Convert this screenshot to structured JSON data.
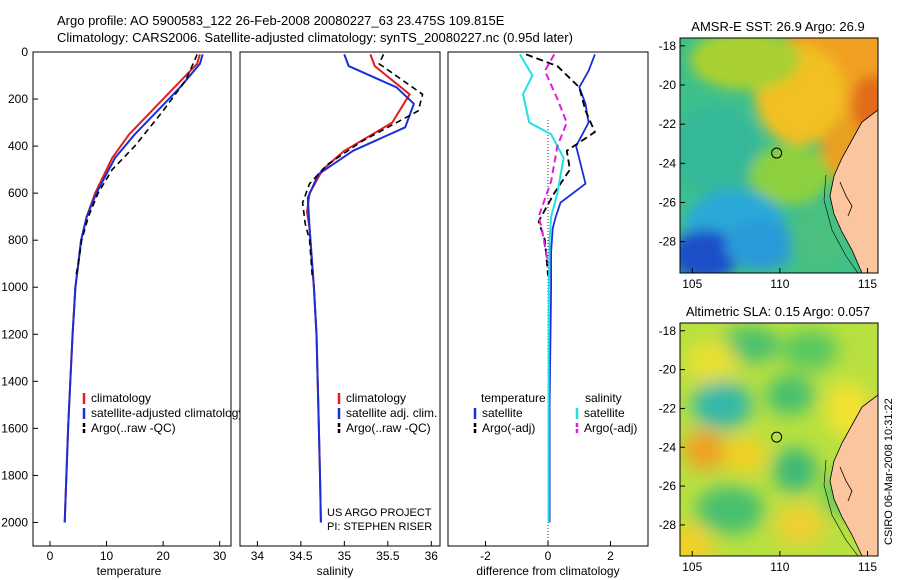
{
  "header": {
    "line1": "Argo profile: AO 5900583_122 26-Feb-2008 20080227_63 23.475S 109.815E",
    "line2": "Climatology: CARS2006. Satellite-adjusted climatology: synTS_20080227.nc (0.95d later)"
  },
  "colors": {
    "climatology": "#e01e1e",
    "satellite": "#1a2fd6",
    "argo": "#000000",
    "satellite_salinity": "#22e0e6",
    "argo_salinity_adj": "#e01ee0",
    "land": "#fbc5a0"
  },
  "chart_data": [
    {
      "type": "line",
      "xlabel": "temperature",
      "y_ticks": [
        0,
        200,
        400,
        600,
        800,
        1000,
        1200,
        1400,
        1600,
        1800,
        2000
      ],
      "xlim": [
        -3,
        32
      ],
      "x_ticks": [
        0,
        10,
        20,
        30
      ],
      "ylim": [
        2100,
        0
      ],
      "legend_position": "lower-center",
      "series": [
        {
          "name": "climatology",
          "x": [
            26.5,
            26.0,
            22.0,
            18.0,
            14.0,
            11.0,
            8.0,
            6.5,
            5.5,
            5.0,
            4.5,
            4.0,
            3.6,
            3.2,
            2.9,
            2.6
          ],
          "y": [
            10,
            50,
            150,
            250,
            350,
            450,
            600,
            700,
            800,
            900,
            1000,
            1200,
            1400,
            1600,
            1800,
            2000
          ]
        },
        {
          "name": "satellite-adjusted climatology",
          "x": [
            27.0,
            26.5,
            23.0,
            19.0,
            15.0,
            11.5,
            8.2,
            6.5,
            5.5,
            5.0,
            4.5,
            4.0,
            3.6,
            3.2,
            2.9,
            2.6
          ],
          "y": [
            10,
            50,
            150,
            250,
            350,
            450,
            600,
            700,
            800,
            900,
            1000,
            1200,
            1400,
            1600,
            1800,
            2000
          ]
        },
        {
          "name": "Argo(..raw -QC)",
          "x": [
            26.0,
            25.5,
            24.0,
            20.0,
            15.0,
            11.0,
            8.5,
            6.8,
            5.6,
            5.0,
            4.6
          ],
          "y": [
            10,
            40,
            120,
            250,
            400,
            500,
            600,
            700,
            800,
            900,
            950
          ]
        }
      ]
    },
    {
      "type": "line",
      "xlabel": "salinity",
      "xlim": [
        33.8,
        36.1
      ],
      "x_ticks": [
        34,
        34.5,
        35,
        35.5,
        36
      ],
      "ylim": [
        2100,
        0
      ],
      "annotations": [
        "US ARGO PROJECT",
        "PI: STEPHEN RISER"
      ],
      "legend_position": "lower-center",
      "series": [
        {
          "name": "climatology",
          "x": [
            35.3,
            35.35,
            35.75,
            35.55,
            35.0,
            34.75,
            34.6,
            34.57,
            34.6,
            34.62,
            34.65,
            34.68,
            34.7,
            34.72,
            34.73
          ],
          "y": [
            10,
            60,
            180,
            300,
            420,
            500,
            600,
            680,
            750,
            850,
            1000,
            1200,
            1500,
            1800,
            2000
          ]
        },
        {
          "name": "satellite adj. clim.",
          "x": [
            35.0,
            35.05,
            35.6,
            35.8,
            35.7,
            35.1,
            34.7,
            34.58,
            34.6,
            34.62,
            34.65,
            34.68,
            34.7,
            34.72,
            34.73
          ],
          "y": [
            10,
            60,
            150,
            220,
            320,
            420,
            520,
            620,
            750,
            850,
            1000,
            1200,
            1500,
            1800,
            2000
          ]
        },
        {
          "name": "Argo(..raw -QC)",
          "x": [
            35.45,
            35.4,
            35.9,
            35.85,
            35.2,
            34.8,
            34.6,
            34.52,
            34.55,
            34.6,
            34.63
          ],
          "y": [
            10,
            50,
            180,
            250,
            380,
            480,
            560,
            640,
            730,
            800,
            950
          ]
        }
      ]
    },
    {
      "type": "line",
      "xlabel": "difference from climatology",
      "xlim": [
        -3.2,
        3.2
      ],
      "x_ticks": [
        -2,
        0,
        2
      ],
      "ylim": [
        2100,
        0
      ],
      "legend_position": "lower-center",
      "legend_groups": [
        {
          "title": "temperature",
          "items": [
            "satellite",
            "Argo(-adj)"
          ]
        },
        {
          "title": "salinity",
          "items": [
            "satellite",
            "Argo(-adj)"
          ]
        }
      ],
      "series": [
        {
          "name": "satellite",
          "group": "temperature",
          "x": [
            1.5,
            1.3,
            1.0,
            1.2,
            1.3,
            0.9,
            1.2,
            0.4,
            0.25,
            0.15,
            0.1,
            0.1,
            0.05,
            0.05
          ],
          "y": [
            10,
            80,
            150,
            220,
            300,
            400,
            560,
            640,
            700,
            750,
            850,
            1000,
            1500,
            2000
          ]
        },
        {
          "name": "Argo(-adj)",
          "group": "temperature",
          "x": [
            -0.7,
            0.3,
            1.0,
            1.2,
            1.5,
            0.6,
            0.7,
            0.2,
            -0.3,
            -0.1,
            0.0
          ],
          "y": [
            10,
            60,
            150,
            250,
            340,
            420,
            500,
            600,
            720,
            800,
            950
          ]
        },
        {
          "name": "satellite",
          "group": "salinity",
          "x": [
            -0.9,
            -0.5,
            -0.8,
            -0.6,
            0.1,
            0.5,
            0.3,
            0.1,
            0.05,
            0.03,
            0.02,
            0.02
          ],
          "y": [
            10,
            100,
            180,
            300,
            350,
            450,
            600,
            700,
            800,
            1000,
            1500,
            2000
          ]
        },
        {
          "name": "Argo(-adj)",
          "group": "salinity",
          "x": [
            0.2,
            -0.1,
            0.3,
            0.6,
            0.3,
            0.1,
            -0.3,
            -0.2,
            0.0
          ],
          "y": [
            10,
            80,
            200,
            300,
            400,
            550,
            700,
            750,
            900
          ]
        }
      ]
    },
    {
      "type": "heatmap",
      "title": "AMSR-E SST: 26.9 Argo: 26.9",
      "xlim": [
        104.3,
        115.6
      ],
      "ylim": [
        -29.6,
        -17.6
      ],
      "x_ticks": [
        105,
        110,
        115
      ],
      "y_ticks": [
        -18,
        -20,
        -22,
        -24,
        -26,
        -28
      ],
      "marker": [
        109.815,
        -23.475
      ]
    },
    {
      "type": "heatmap",
      "title": "Altimetric SLA: 0.15 Argo: 0.057",
      "xlim": [
        104.3,
        115.6
      ],
      "ylim": [
        -29.6,
        -17.6
      ],
      "x_ticks": [
        105,
        110,
        115
      ],
      "y_ticks": [
        -18,
        -20,
        -22,
        -24,
        -26,
        -28
      ],
      "marker": [
        109.815,
        -23.475
      ]
    }
  ],
  "footer": {
    "vertical_stamp": "CSIRO 06-Mar-2008 10:31:22"
  }
}
